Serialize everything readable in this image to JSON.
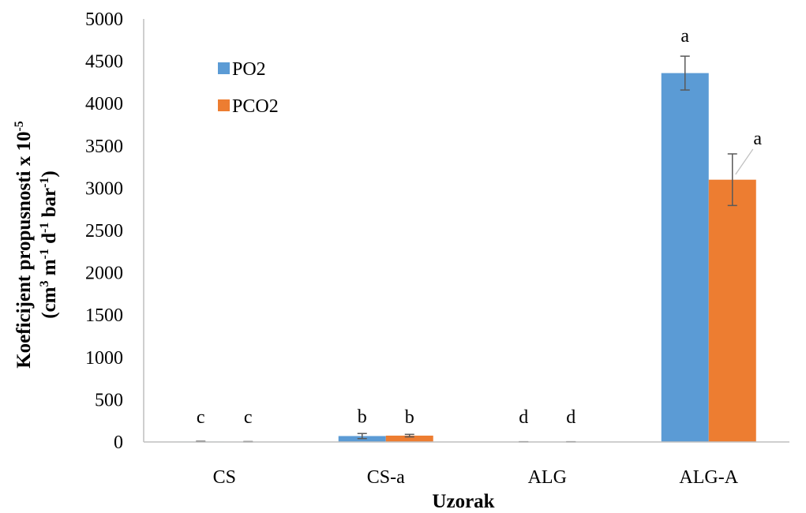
{
  "chart_data": {
    "type": "bar",
    "categories": [
      "CS",
      "CS-a",
      "ALG",
      "ALG-A"
    ],
    "series": [
      {
        "name": "PO2",
        "color": "#5b9bd5",
        "values": [
          5,
          70,
          2,
          4360
        ],
        "errors": [
          3,
          30,
          1,
          200
        ],
        "labels": [
          "c",
          "b",
          "d",
          "a"
        ]
      },
      {
        "name": "PCO2",
        "color": "#ed7d31",
        "values": [
          3,
          75,
          2,
          3100
        ],
        "errors": [
          2,
          15,
          1,
          305
        ],
        "labels": [
          "c",
          "b",
          "d",
          "a"
        ]
      }
    ],
    "ylim": [
      0,
      5000
    ],
    "yticks": [
      0,
      500,
      1000,
      1500,
      2000,
      2500,
      3000,
      3500,
      4000,
      4500,
      5000
    ],
    "xlabel": "Uzorak",
    "ylabel_line1_prefix": "Koeficijent propusnosti x 10",
    "ylabel_line1_sup": "-5",
    "ylabel_line2": [
      "(cm",
      "3",
      " m",
      "-1",
      " d",
      "-1",
      " bar",
      "-1",
      ")"
    ],
    "legend_position": "top-left",
    "grid": false
  }
}
